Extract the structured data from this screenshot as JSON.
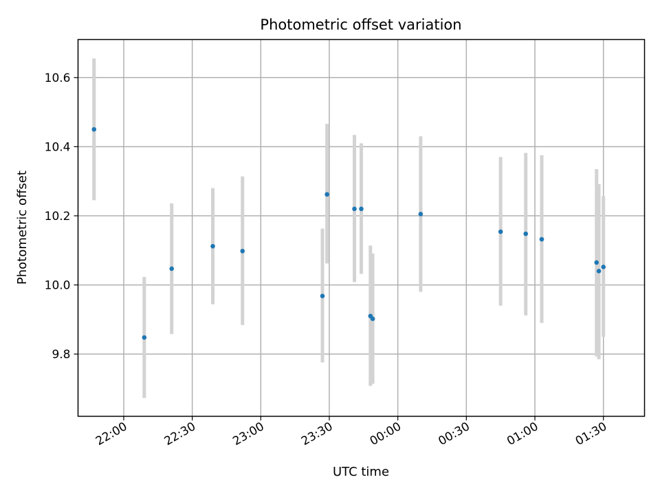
{
  "chart_data": {
    "type": "scatter",
    "title": "Photometric offset variation",
    "xlabel": "UTC time",
    "ylabel": "Photometric offset",
    "grid": true,
    "xlim": [
      "21:40",
      "01:48"
    ],
    "ylim": [
      9.62,
      10.71
    ],
    "x_ticks": [
      {
        "time": "22:00",
        "label": "22:00"
      },
      {
        "time": "22:30",
        "label": "22:30"
      },
      {
        "time": "23:00",
        "label": "23:00"
      },
      {
        "time": "23:30",
        "label": "23:30"
      },
      {
        "time": "00:00",
        "label": "00:00"
      },
      {
        "time": "00:30",
        "label": "00:30"
      },
      {
        "time": "01:00",
        "label": "01:00"
      },
      {
        "time": "01:30",
        "label": "01:30"
      }
    ],
    "y_ticks": [
      {
        "value": 9.8,
        "label": "9.8"
      },
      {
        "value": 10.0,
        "label": "10.0"
      },
      {
        "value": 10.2,
        "label": "10.2"
      },
      {
        "value": 10.4,
        "label": "10.4"
      },
      {
        "value": 10.6,
        "label": "10.6"
      }
    ],
    "colors": {
      "point": "#1f77b4",
      "errorbar": "#d3d3d3"
    },
    "points": [
      {
        "x": "21:47",
        "y": 10.45,
        "ylow": 10.245,
        "yhigh": 10.655
      },
      {
        "x": "22:09",
        "y": 9.848,
        "ylow": 9.673,
        "yhigh": 10.023
      },
      {
        "x": "22:21",
        "y": 10.047,
        "ylow": 9.858,
        "yhigh": 10.236
      },
      {
        "x": "22:39",
        "y": 10.112,
        "ylow": 9.944,
        "yhigh": 10.28
      },
      {
        "x": "22:52",
        "y": 10.098,
        "ylow": 9.884,
        "yhigh": 10.314
      },
      {
        "x": "23:27",
        "y": 9.968,
        "ylow": 9.776,
        "yhigh": 10.163
      },
      {
        "x": "23:29",
        "y": 10.262,
        "ylow": 10.062,
        "yhigh": 10.466
      },
      {
        "x": "23:41",
        "y": 10.22,
        "ylow": 10.008,
        "yhigh": 10.434
      },
      {
        "x": "23:44",
        "y": 10.22,
        "ylow": 10.032,
        "yhigh": 10.41
      },
      {
        "x": "23:48",
        "y": 9.91,
        "ylow": 9.708,
        "yhigh": 10.114
      },
      {
        "x": "23:49",
        "y": 9.902,
        "ylow": 9.714,
        "yhigh": 10.091
      },
      {
        "x": "00:10",
        "y": 10.205,
        "ylow": 9.98,
        "yhigh": 10.43
      },
      {
        "x": "00:45",
        "y": 10.154,
        "ylow": 9.94,
        "yhigh": 10.37
      },
      {
        "x": "00:56",
        "y": 10.148,
        "ylow": 9.912,
        "yhigh": 10.382
      },
      {
        "x": "01:03",
        "y": 10.132,
        "ylow": 9.89,
        "yhigh": 10.375
      },
      {
        "x": "01:27",
        "y": 10.065,
        "ylow": 9.793,
        "yhigh": 10.335
      },
      {
        "x": "01:28",
        "y": 10.04,
        "ylow": 9.785,
        "yhigh": 10.292
      },
      {
        "x": "01:30",
        "y": 10.052,
        "ylow": 9.85,
        "yhigh": 10.257
      }
    ]
  }
}
